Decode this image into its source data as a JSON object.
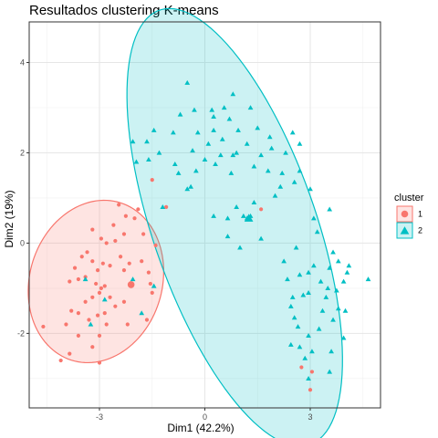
{
  "chart_data": {
    "type": "scatter",
    "title": "Resultados clustering K-means",
    "xlabel": "Dim1 (42.2%)",
    "ylabel": "Dim2 (19%)",
    "xlim": [
      -5.0,
      5.0
    ],
    "ylim": [
      -3.65,
      4.9
    ],
    "x_ticks": [
      -3,
      0,
      3
    ],
    "y_ticks": [
      -2,
      0,
      2,
      4
    ],
    "grid": true,
    "legend": {
      "title": "cluster",
      "position": "right",
      "entries": [
        {
          "label": "1",
          "color": "#F8766D",
          "shape": "circle"
        },
        {
          "label": "2",
          "color": "#00BFC4",
          "shape": "triangle"
        }
      ]
    },
    "series": [
      {
        "label": "1",
        "color": "#F8766D",
        "shape": "circle",
        "center": [
          -2.1,
          -0.92
        ],
        "ellipse": {
          "cx": -3.1,
          "cy": -0.85,
          "rx": 1.73,
          "ry": 1.99,
          "angle_deg": -60
        },
        "points": [
          [
            -1.5,
            1.4
          ],
          [
            -1.9,
            0.75
          ],
          [
            -2.0,
            0.55
          ],
          [
            -2.25,
            0.6
          ],
          [
            -1.75,
            0.2
          ],
          [
            -1.4,
            -0.05
          ],
          [
            -2.3,
            0.2
          ],
          [
            -2.6,
            0.4
          ],
          [
            -2.55,
            0.05
          ],
          [
            -2.8,
            0.0
          ],
          [
            -2.95,
            0.1
          ],
          [
            -3.2,
            0.3
          ],
          [
            -2.4,
            -0.3
          ],
          [
            -2.15,
            -0.45
          ],
          [
            -1.8,
            -0.4
          ],
          [
            -1.6,
            -0.65
          ],
          [
            -2.3,
            -0.6
          ],
          [
            -2.7,
            -0.5
          ],
          [
            -2.9,
            -0.45
          ],
          [
            -3.05,
            -0.6
          ],
          [
            -3.2,
            -0.4
          ],
          [
            -3.35,
            -0.2
          ],
          [
            -3.5,
            -0.3
          ],
          [
            -3.7,
            -0.55
          ],
          [
            -3.85,
            -0.85
          ],
          [
            -3.6,
            -0.8
          ],
          [
            -3.4,
            -0.75
          ],
          [
            -3.1,
            -0.9
          ],
          [
            -2.85,
            -0.95
          ],
          [
            -3.0,
            -1.1
          ],
          [
            -3.2,
            -1.2
          ],
          [
            -3.4,
            -1.3
          ],
          [
            -2.7,
            -1.2
          ],
          [
            -2.55,
            -1.4
          ],
          [
            -2.3,
            -1.3
          ],
          [
            -1.5,
            -1.1
          ],
          [
            -2.85,
            -1.55
          ],
          [
            -3.05,
            -1.6
          ],
          [
            -3.3,
            -1.7
          ],
          [
            -3.6,
            -1.55
          ],
          [
            -3.8,
            -1.5
          ],
          [
            -3.95,
            -1.8
          ],
          [
            -2.2,
            -1.8
          ],
          [
            -2.8,
            -1.8
          ],
          [
            -3.0,
            -2.05
          ],
          [
            -3.6,
            -2.05
          ],
          [
            -3.2,
            -2.3
          ],
          [
            -3.85,
            -2.45
          ],
          [
            -4.1,
            -2.6
          ],
          [
            -4.6,
            -1.85
          ],
          [
            -3.0,
            -2.65
          ],
          [
            -2.95,
            -1.0
          ],
          [
            2.75,
            -2.75
          ],
          [
            3.0,
            -3.25
          ],
          [
            3.05,
            -2.85
          ],
          [
            -1.55,
            -0.9
          ],
          [
            -2.45,
            0.85
          ],
          [
            -1.1,
            0.8
          ],
          [
            1.6,
            0.75
          ],
          [
            -1.65,
            -1.7
          ]
        ]
      },
      {
        "label": "2",
        "color": "#00BFC4",
        "shape": "triangle",
        "center": [
          1.25,
          0.55
        ],
        "ellipse": {
          "cx": 0.85,
          "cy": 0.35,
          "rx": 5.28,
          "ry": 2.24,
          "angle_deg": -64
        },
        "points": [
          [
            -0.5,
            3.55
          ],
          [
            0.8,
            3.3
          ],
          [
            -0.7,
            2.85
          ],
          [
            -0.3,
            2.95
          ],
          [
            0.2,
            2.95
          ],
          [
            1.3,
            3.0
          ],
          [
            0.7,
            2.75
          ],
          [
            0.55,
            3.0
          ],
          [
            0.25,
            2.5
          ],
          [
            -0.2,
            2.45
          ],
          [
            0.1,
            2.2
          ],
          [
            0.5,
            2.3
          ],
          [
            0.95,
            2.5
          ],
          [
            1.5,
            2.55
          ],
          [
            1.85,
            2.35
          ],
          [
            2.5,
            2.45
          ],
          [
            2.7,
            2.2
          ],
          [
            2.3,
            2.0
          ],
          [
            1.9,
            2.1
          ],
          [
            1.6,
            1.95
          ],
          [
            1.2,
            2.2
          ],
          [
            0.9,
            2.0
          ],
          [
            0.45,
            1.95
          ],
          [
            0.0,
            1.85
          ],
          [
            -0.35,
            2.05
          ],
          [
            -0.9,
            2.45
          ],
          [
            -1.45,
            2.5
          ],
          [
            -1.65,
            2.25
          ],
          [
            -1.3,
            2.0
          ],
          [
            -0.85,
            1.75
          ],
          [
            -1.95,
            1.8
          ],
          [
            -2.05,
            2.25
          ],
          [
            -0.75,
            1.55
          ],
          [
            -0.25,
            1.6
          ],
          [
            -0.4,
            1.25
          ],
          [
            0.3,
            1.75
          ],
          [
            0.75,
            1.55
          ],
          [
            1.4,
            1.7
          ],
          [
            1.8,
            1.6
          ],
          [
            2.2,
            1.55
          ],
          [
            2.55,
            1.35
          ],
          [
            2.7,
            1.6
          ],
          [
            3.0,
            1.2
          ],
          [
            2.0,
            1.05
          ],
          [
            1.4,
            0.9
          ],
          [
            1.3,
            0.6
          ],
          [
            1.2,
            0.55
          ],
          [
            1.1,
            0.6
          ],
          [
            0.9,
            0.8
          ],
          [
            0.65,
            0.55
          ],
          [
            0.25,
            0.6
          ],
          [
            -0.5,
            1.2
          ],
          [
            -1.2,
            0.8
          ],
          [
            -1.45,
            -0.95
          ],
          [
            -2.85,
            -1.25
          ],
          [
            0.65,
            0.15
          ],
          [
            1.0,
            -0.1
          ],
          [
            1.6,
            0.1
          ],
          [
            3.1,
            0.55
          ],
          [
            3.55,
            0.75
          ],
          [
            3.2,
            0.25
          ],
          [
            2.6,
            -0.1
          ],
          [
            2.25,
            -0.4
          ],
          [
            3.65,
            -0.2
          ],
          [
            3.1,
            -0.5
          ],
          [
            2.95,
            -0.65
          ],
          [
            3.55,
            -0.55
          ],
          [
            3.8,
            -0.4
          ],
          [
            4.1,
            -0.5
          ],
          [
            4.65,
            -0.8
          ],
          [
            3.95,
            -0.85
          ],
          [
            3.5,
            -1.0
          ],
          [
            3.3,
            -0.85
          ],
          [
            2.7,
            -0.7
          ],
          [
            2.35,
            -0.8
          ],
          [
            2.95,
            -1.1
          ],
          [
            2.5,
            -1.2
          ],
          [
            2.55,
            -1.65
          ],
          [
            2.45,
            -1.4
          ],
          [
            2.65,
            -1.85
          ],
          [
            2.7,
            -2.3
          ],
          [
            2.45,
            -2.25
          ],
          [
            2.95,
            -2.05
          ],
          [
            3.25,
            -1.9
          ],
          [
            3.65,
            -1.7
          ],
          [
            3.8,
            -1.45
          ],
          [
            4.0,
            -1.5
          ],
          [
            3.95,
            -2.1
          ],
          [
            3.6,
            -2.4
          ],
          [
            3.05,
            -2.4
          ],
          [
            2.85,
            -2.55
          ],
          [
            2.95,
            -3.0
          ],
          [
            3.55,
            -2.85
          ],
          [
            3.35,
            -1.5
          ],
          [
            3.75,
            -1.05
          ],
          [
            -2.05,
            -0.8
          ],
          [
            -3.4,
            -0.8
          ],
          [
            -1.6,
            1.85
          ],
          [
            -1.8,
            -1.55
          ],
          [
            -3.25,
            -1.8
          ],
          [
            0.25,
            2.8
          ],
          [
            2.15,
            1.25
          ],
          [
            4.05,
            -0.65
          ],
          [
            3.45,
            -1.2
          ],
          [
            2.8,
            -1.15
          ],
          [
            0.8,
            1.95
          ]
        ]
      }
    ]
  }
}
